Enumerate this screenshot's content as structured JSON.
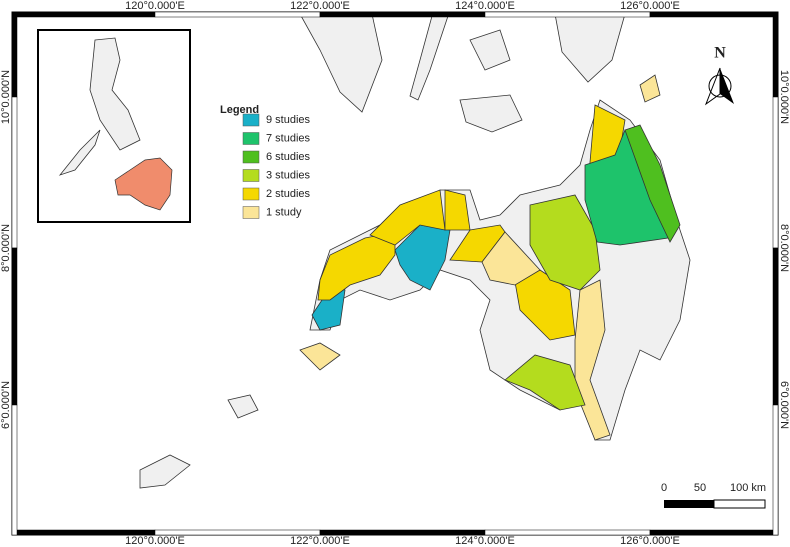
{
  "map": {
    "top_labels": [
      "120°0.000'E",
      "122°0.000'E",
      "124°0.000'E",
      "126°0.000'E"
    ],
    "bottom_labels": [
      "120°0.000'E",
      "122°0.000'E",
      "124°0.000'E",
      "126°0.000'E"
    ],
    "left_labels": [
      "10°0.000'N",
      "8°0.000'N",
      "6°0.000'N"
    ],
    "right_labels": [
      "10°0.000'N",
      "8°0.000'N",
      "6°0.000'N"
    ]
  },
  "legend": {
    "title": "Legend",
    "items": [
      {
        "label": "9 studies",
        "color": "#1ab0c8"
      },
      {
        "label": "7 studies",
        "color": "#1ec36b"
      },
      {
        "label": "6 studies",
        "color": "#4fbf1f"
      },
      {
        "label": "3 studies",
        "color": "#b4dc1e"
      },
      {
        "label": "2 studies",
        "color": "#f5d800"
      },
      {
        "label": "1 study",
        "color": "#fbe598"
      }
    ]
  },
  "scale_bar": {
    "labels": [
      "0",
      "50",
      "100 km"
    ]
  },
  "north_arrow": {
    "label": "N"
  }
}
